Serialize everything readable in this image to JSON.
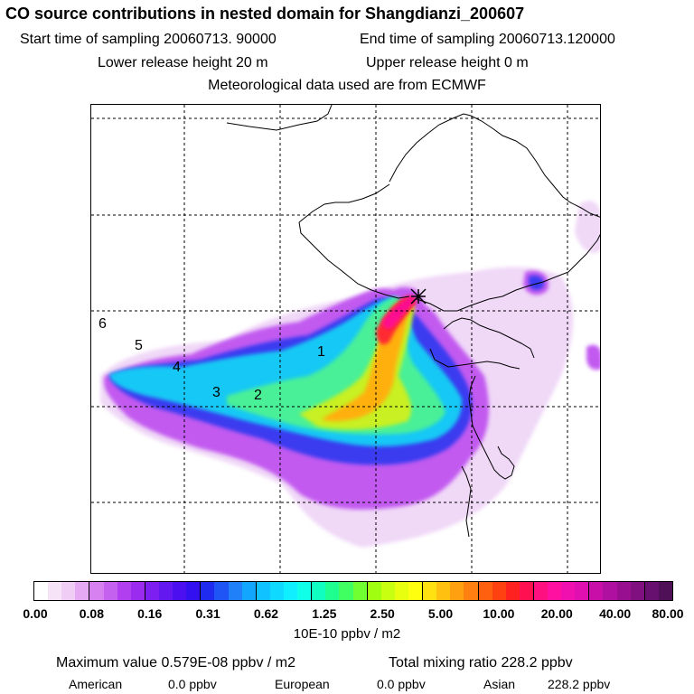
{
  "header": {
    "title": "CO  source contributions in nested domain for Shangdianzi_200607",
    "start_time": "Start time of sampling 20060713. 90000",
    "end_time": "End time of sampling 20060713.120000",
    "lower_release": "Lower release height   20 m",
    "upper_release": "Upper release height    0 m",
    "met_data": "Meteorological data used are from ECMWF"
  },
  "map": {
    "site_marker": "receptor-cross",
    "trajectory_labels": [
      "1",
      "2",
      "3",
      "4",
      "5",
      "6"
    ],
    "plume_levels": [
      "0.00",
      "0.08",
      "0.16",
      "0.31",
      "0.62",
      "1.25",
      "2.50",
      "5.00",
      "10.00",
      "20.00",
      "40.00",
      "80.00"
    ]
  },
  "colorbar": {
    "labels": [
      "0.00",
      "0.08",
      "0.16",
      "0.31",
      "0.62",
      "1.25",
      "2.50",
      "5.00",
      "10.00",
      "20.00",
      "40.00",
      "80.00"
    ],
    "colors": [
      "#ffffff",
      "#f6e3f8",
      "#efcdf5",
      "#e4a9f2",
      "#d781f0",
      "#c561ef",
      "#b13ff0",
      "#9c2bf0",
      "#7d1ff0",
      "#6418f0",
      "#4c10f0",
      "#3310f0",
      "#1f2cf0",
      "#1f55f5",
      "#1f80fa",
      "#12a6ff",
      "#10c2ff",
      "#10d9ff",
      "#10efff",
      "#10ffe8",
      "#10ffc0",
      "#1fff90",
      "#40ff60",
      "#70ff30",
      "#a0ff10",
      "#c8ff10",
      "#e8ff10",
      "#ffff10",
      "#ffe010",
      "#ffc010",
      "#ffa010",
      "#ff8010",
      "#ff6010",
      "#ff4010",
      "#ff2020",
      "#ff1050",
      "#ff1080",
      "#ff10a0",
      "#f010b0",
      "#e010b0",
      "#c810a8",
      "#b010a0",
      "#981090",
      "#801080",
      "#681070",
      "#501058"
    ],
    "unit": "10E-10 ppbv / m2"
  },
  "footer": {
    "max_value": "Maximum value  0.579E-08 ppbv / m2",
    "total_mixing": "Total mixing ratio      228.2 ppbv",
    "american_label": "American",
    "american_value": "0.0 ppbv",
    "european_label": "European",
    "european_value": "0.0 ppbv",
    "asian_label": "Asian",
    "asian_value": "228.2 ppbv"
  }
}
